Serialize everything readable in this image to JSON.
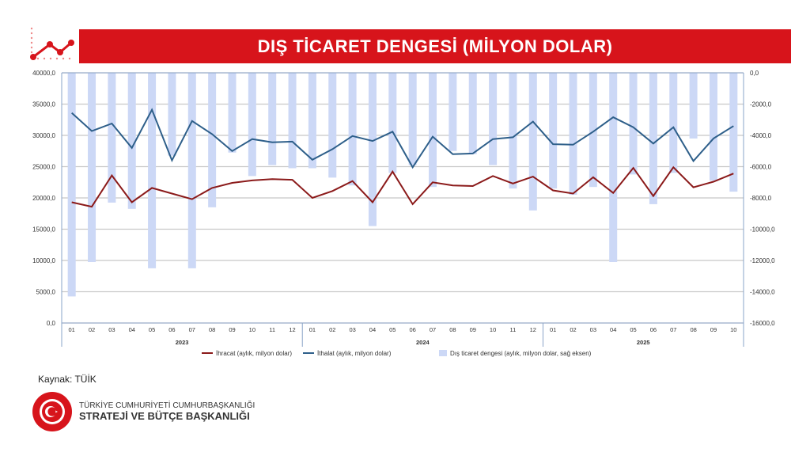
{
  "title": "DIŞ TİCARET DENGESİ (MİLYON DOLAR)",
  "source": "Kaynak: TÜİK",
  "org": {
    "line1": "TÜRKİYE CUMHURİYETİ CUMHURBAŞKANLIĞI",
    "line2": "STRATEJİ VE BÜTÇE BAŞKANLIĞI"
  },
  "colors": {
    "banner": "#d7141b",
    "exports": "#8b1a1a",
    "imports": "#2e5f8a",
    "balance": "#ccd8f6"
  },
  "chart_data": {
    "type": "bar+line",
    "title": "DIŞ TİCARET DENGESİ (MİLYON DOLAR)",
    "years": [
      {
        "label": "2023",
        "months": 12
      },
      {
        "label": "2024",
        "months": 12
      },
      {
        "label": "2025",
        "months": 10
      }
    ],
    "categories": [
      "01",
      "02",
      "03",
      "04",
      "05",
      "06",
      "07",
      "08",
      "09",
      "10",
      "11",
      "12",
      "01",
      "02",
      "03",
      "04",
      "05",
      "06",
      "07",
      "08",
      "09",
      "10",
      "11",
      "12",
      "01",
      "02",
      "03",
      "04",
      "05",
      "06",
      "07",
      "08",
      "09",
      "10"
    ],
    "ylim_left": [
      0,
      40000
    ],
    "yticks_left": [
      "0,0",
      "5000,0",
      "10000,0",
      "15000,0",
      "20000,0",
      "25000,0",
      "30000,0",
      "35000,0",
      "40000,0"
    ],
    "ylim_right": [
      -16000,
      0
    ],
    "yticks_right": [
      "-16000,0",
      "-14000,0",
      "-12000,0",
      "-10000,0",
      "-8000,0",
      "-6000,0",
      "-4000,0",
      "-2000,0",
      "0,0"
    ],
    "grid": true,
    "legend_position": "bottom",
    "series": [
      {
        "name": "İhracat (aylık, milyon dolar)",
        "type": "line",
        "axis": "left",
        "values": [
          19300,
          18600,
          23600,
          19300,
          21600,
          20700,
          19800,
          21600,
          22400,
          22800,
          23000,
          22900,
          20000,
          21100,
          22700,
          19300,
          24200,
          19000,
          22500,
          22000,
          21900,
          23500,
          22300,
          23400,
          21200,
          20700,
          23300,
          20800,
          24800,
          20300,
          24900,
          21700,
          22600,
          23900
        ]
      },
      {
        "name": "İthalat (aylık, milyon dolar)",
        "type": "line",
        "axis": "left",
        "values": [
          33600,
          30700,
          31900,
          28000,
          34100,
          26000,
          32300,
          30200,
          27500,
          29400,
          28900,
          29000,
          26100,
          27800,
          29900,
          29100,
          30600,
          24900,
          29800,
          27000,
          27100,
          29400,
          29700,
          32200,
          28600,
          28500,
          30600,
          32900,
          31300,
          28700,
          31300,
          25900,
          29500,
          31500
        ]
      },
      {
        "name": "Dış ticaret dengesi (aylık, milyon dolar, sağ eksen)",
        "type": "bar",
        "axis": "right",
        "values": [
          -14300,
          -12100,
          -8300,
          -8700,
          -12500,
          -5300,
          -12500,
          -8600,
          -5100,
          -6600,
          -5900,
          -6100,
          -6100,
          -6700,
          -7200,
          -9800,
          -6400,
          -5900,
          -7300,
          -5000,
          -5200,
          -5900,
          -7400,
          -8800,
          -7400,
          -7800,
          -7300,
          -12100,
          -6500,
          -8400,
          -6400,
          -4200,
          -6900,
          -7600
        ]
      }
    ]
  }
}
